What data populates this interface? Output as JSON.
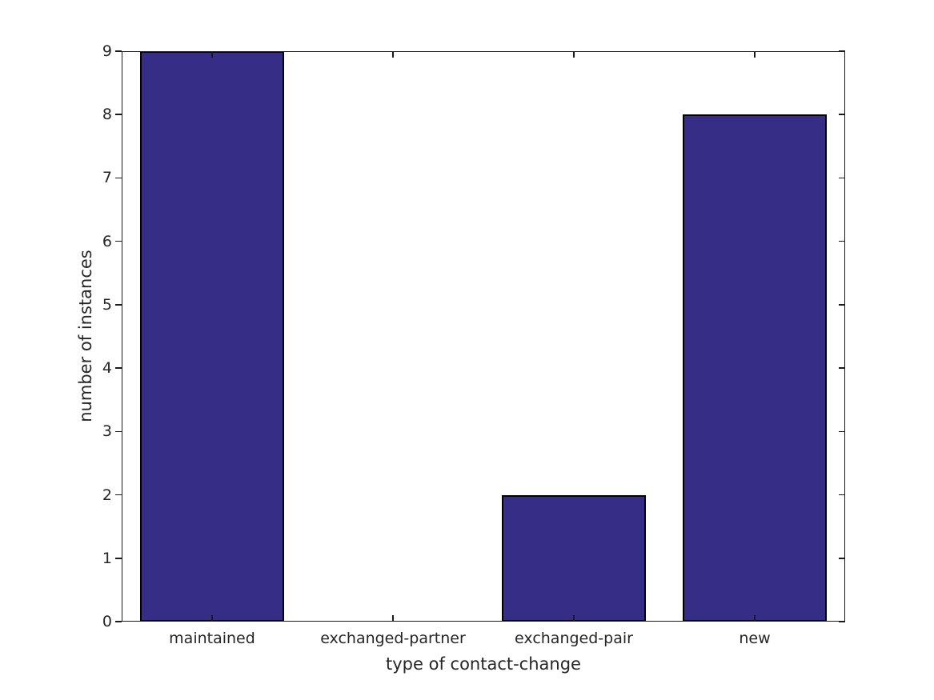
{
  "chart_data": {
    "type": "bar",
    "categories": [
      "maintained",
      "exchanged-partner",
      "exchanged-pair",
      "new"
    ],
    "values": [
      9,
      0,
      2,
      8
    ],
    "title": "",
    "xlabel": "type of contact-change",
    "ylabel": "number of instances",
    "ylim": [
      0,
      9
    ],
    "yticks": [
      0,
      1,
      2,
      3,
      4,
      5,
      6,
      7,
      8,
      9
    ],
    "grid": false,
    "legend": null,
    "bar_color": "#352d86",
    "bar_edge_color": "#000000",
    "axis_color": "#1a1a1a",
    "text_color": "#262626",
    "background_color": "#ffffff"
  }
}
